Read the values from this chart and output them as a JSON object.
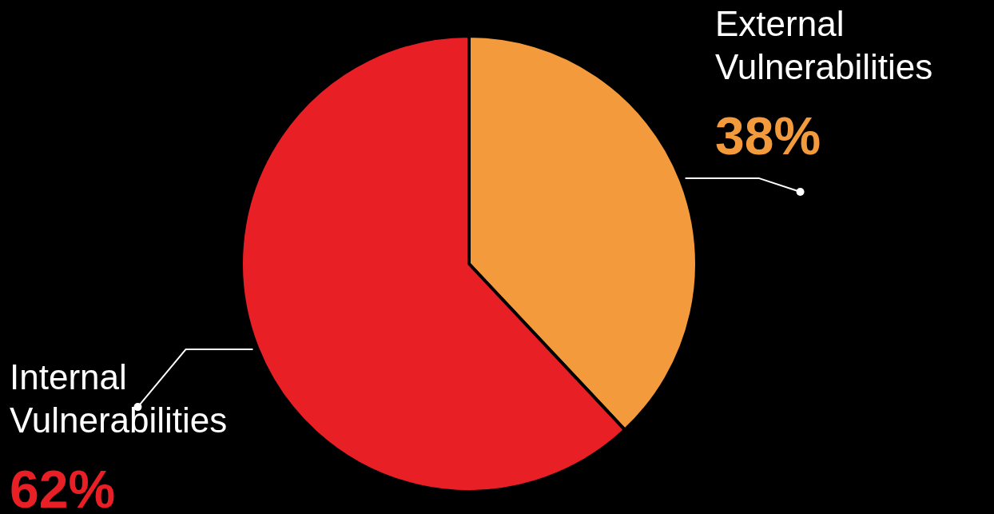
{
  "chart_data": {
    "type": "pie",
    "categories": [
      "External Vulnerabilities",
      "Internal Vulnerabilities"
    ],
    "values": [
      38,
      62
    ],
    "colors": [
      "#f39a3c",
      "#e91f26"
    ],
    "value_labels": [
      "38%",
      "62%"
    ],
    "legend": false
  }
}
